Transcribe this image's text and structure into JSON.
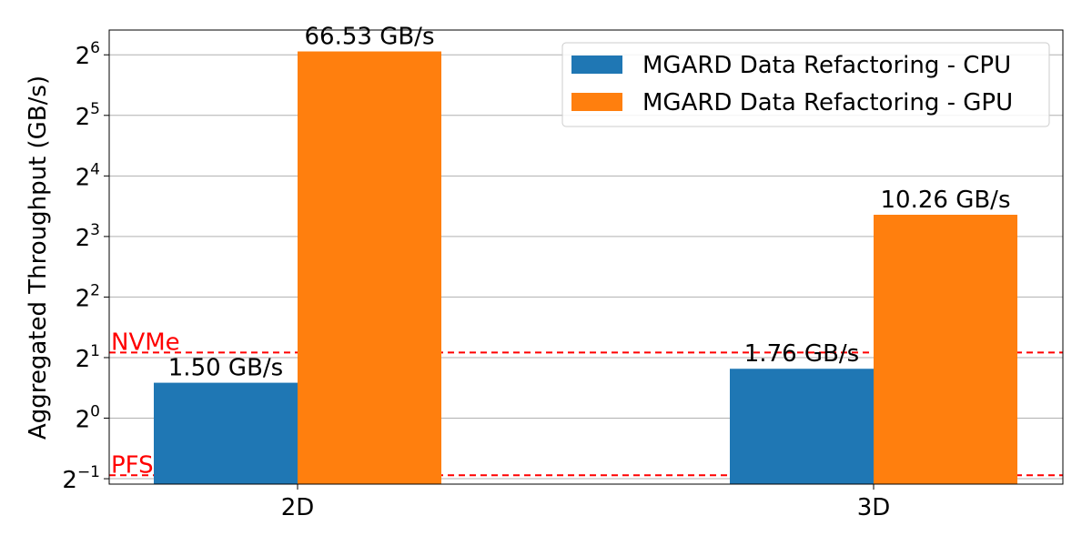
{
  "chart_data": {
    "type": "bar",
    "scale": "log2",
    "categories": [
      "2D",
      "3D"
    ],
    "series": [
      {
        "name": "MGARD Data Refactoring - CPU",
        "color": "#1f77b4",
        "values": [
          1.5,
          1.76
        ],
        "labels": [
          "1.50 GB/s",
          "1.76 GB/s"
        ]
      },
      {
        "name": "MGARD Data Refactoring - GPU",
        "color": "#ff7f0e",
        "values": [
          66.53,
          10.26
        ],
        "labels": [
          "66.53 GB/s",
          "10.26 GB/s"
        ]
      }
    ],
    "ylabel": "Aggregated Throughput (GB/s)",
    "xlabel": "",
    "ylim": [
      0.47,
      85
    ],
    "yticks": [
      {
        "value": 0.5,
        "base": "2",
        "exp": "−1"
      },
      {
        "value": 1,
        "base": "2",
        "exp": "0"
      },
      {
        "value": 2,
        "base": "2",
        "exp": "1"
      },
      {
        "value": 4,
        "base": "2",
        "exp": "2"
      },
      {
        "value": 8,
        "base": "2",
        "exp": "3"
      },
      {
        "value": 16,
        "base": "2",
        "exp": "4"
      },
      {
        "value": 32,
        "base": "2",
        "exp": "5"
      },
      {
        "value": 64,
        "base": "2",
        "exp": "6"
      }
    ],
    "grid": true,
    "legend_position": "top-right",
    "reference_lines": [
      {
        "label": "NVMe",
        "value": 2.12,
        "color": "#ff0000"
      },
      {
        "label": "PFS",
        "value": 0.52,
        "color": "#ff0000"
      }
    ]
  }
}
